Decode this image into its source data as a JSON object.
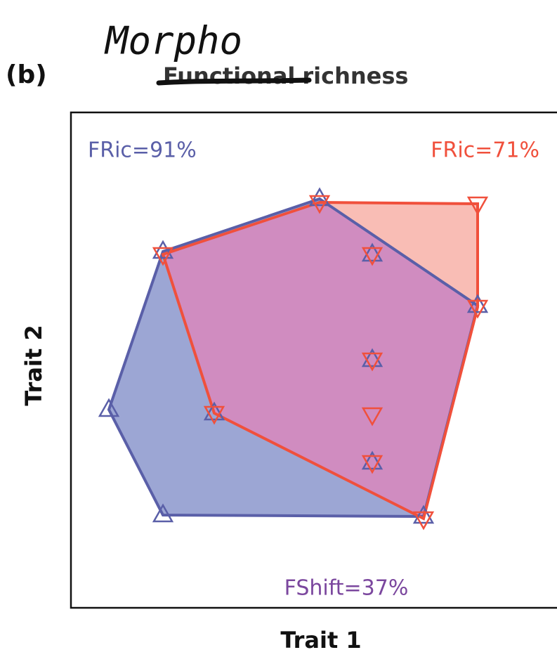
{
  "panel_label": "(b)",
  "annotation": "Morpho",
  "title": {
    "struck": "Functional",
    "rest": "richness"
  },
  "labels": {
    "fric_before": "FRic=91%",
    "fric_after": "FRic=71%",
    "fshift": "FShift=37%"
  },
  "x_axis_label": "Trait 1",
  "y_axis_label": "Trait 2"
}
